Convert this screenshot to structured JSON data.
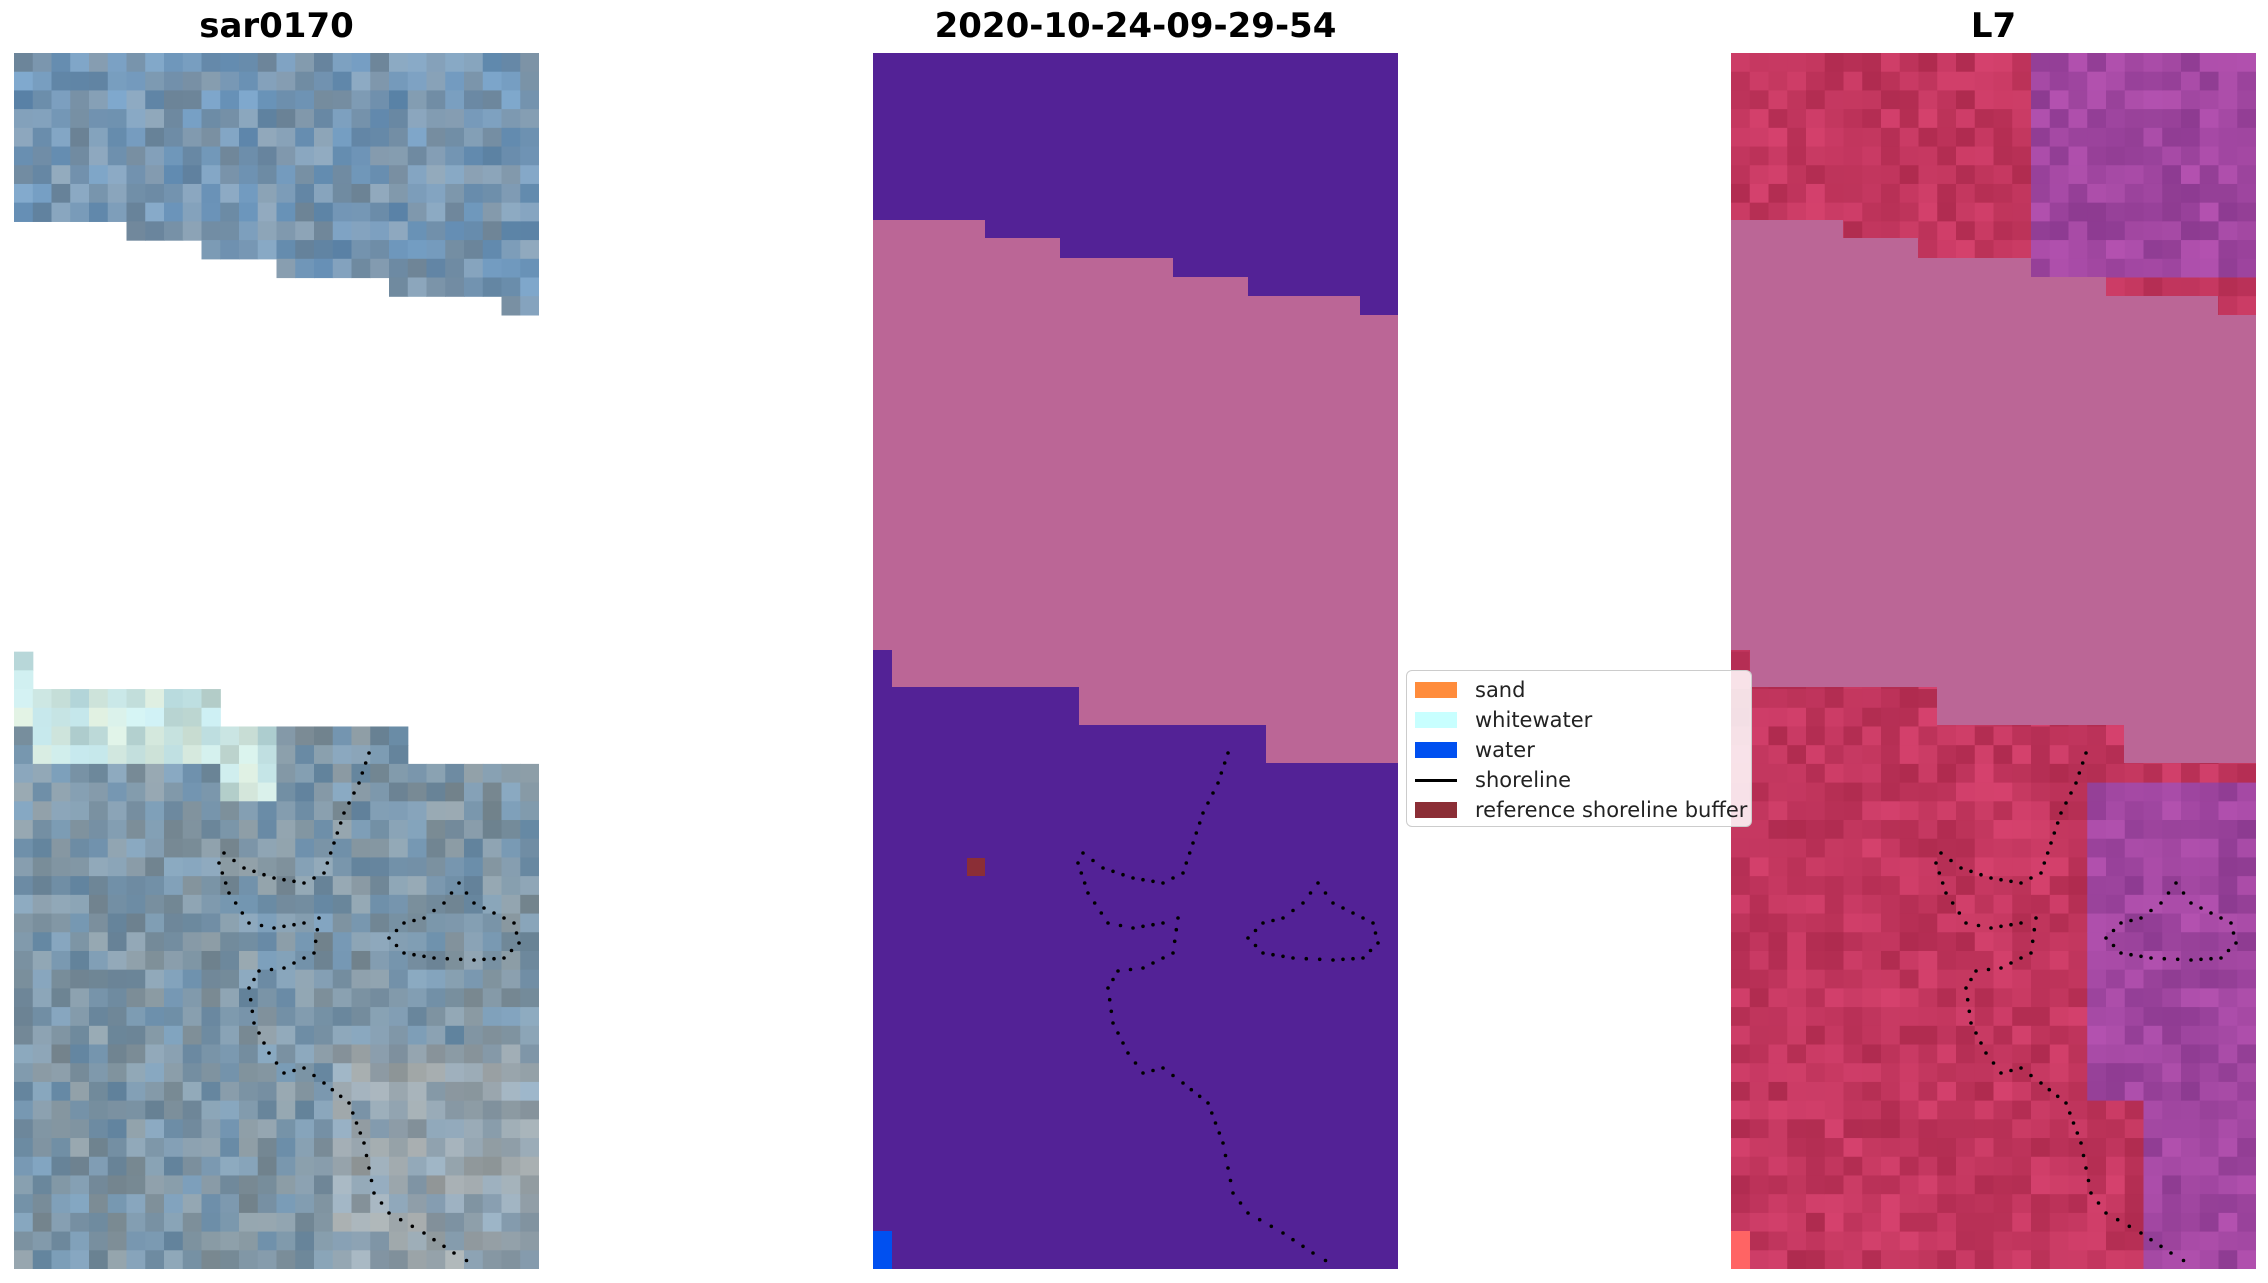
{
  "panels": [
    {
      "title": "sar0170"
    },
    {
      "title": "2020-10-24-09-29-54"
    },
    {
      "title": "L7"
    }
  ],
  "legend": {
    "items": [
      {
        "label": "sand",
        "color": "#ff8c3c"
      },
      {
        "label": "whitewater",
        "color": "#c8ffff"
      },
      {
        "label": "water",
        "color": "#0050f0"
      },
      {
        "label": "shoreline",
        "color": "#000000"
      },
      {
        "label": "reference shoreline buffer",
        "color": "#8b2e36"
      }
    ]
  },
  "colors": {
    "classified_background": "#532296",
    "cloud_mask": "#bb6696",
    "rgb_base": "#7d95a8",
    "false_color_base": "#c2365e"
  }
}
